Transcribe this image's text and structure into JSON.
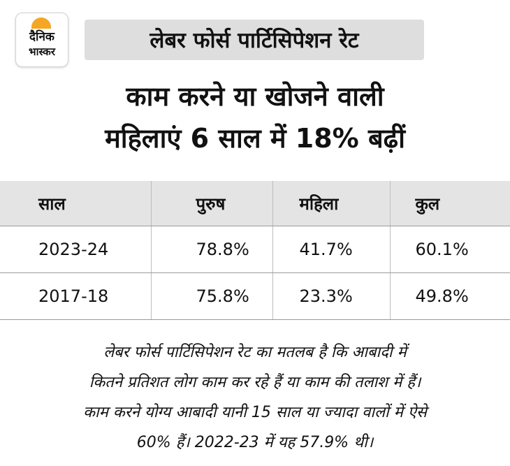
{
  "logo": {
    "line1": "दैनिक",
    "line2": "भास्कर",
    "accent": "#f5a623"
  },
  "tag": "लेबर फोर्स पार्टिसिपेशन रेट",
  "title": {
    "line1": "काम करने या खोजने वाली",
    "line2": "महिलाएं 6 साल में 18% बढ़ीं"
  },
  "table": {
    "headers": [
      "साल",
      "पुरुष",
      "महिला",
      "कुल"
    ],
    "rows": [
      [
        "2023-24",
        "78.8%",
        "41.7%",
        "60.1%"
      ],
      [
        "2017-18",
        "75.8%",
        "23.3%",
        "49.8%"
      ]
    ]
  },
  "note": [
    "लेबर फोर्स पार्टिसिपेशन रेट का मतलब है कि आबादी में",
    "कितने प्रतिशत लोग काम कर रहे हैं या काम की तलाश में हैं।",
    "काम करने योग्य आबादी यानी 15 साल या ज्यादा वालों में ऐसे",
    "60% हैं। 2022-23 में यह 57.9% थी।"
  ]
}
